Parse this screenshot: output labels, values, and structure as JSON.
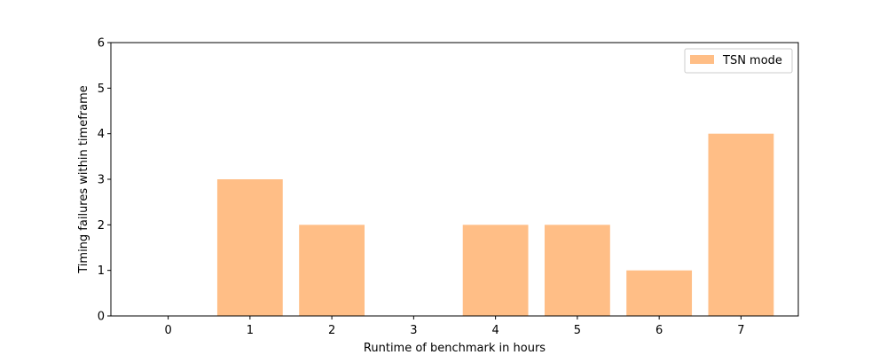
{
  "chart_data": {
    "type": "bar",
    "title": "",
    "xlabel": "Runtime of benchmark in hours",
    "ylabel": "Timing failures within timeframe",
    "categories": [
      "0",
      "1",
      "2",
      "3",
      "4",
      "5",
      "6",
      "7"
    ],
    "series": [
      {
        "name": "TSN mode",
        "values": [
          0,
          3,
          2,
          0,
          2,
          2,
          1,
          4
        ],
        "color": "#ffbe86"
      }
    ],
    "ylim": [
      0,
      6
    ],
    "yticks": [
      0,
      1,
      2,
      3,
      4,
      5,
      6
    ],
    "grid": false,
    "legend_position": "top-right"
  }
}
